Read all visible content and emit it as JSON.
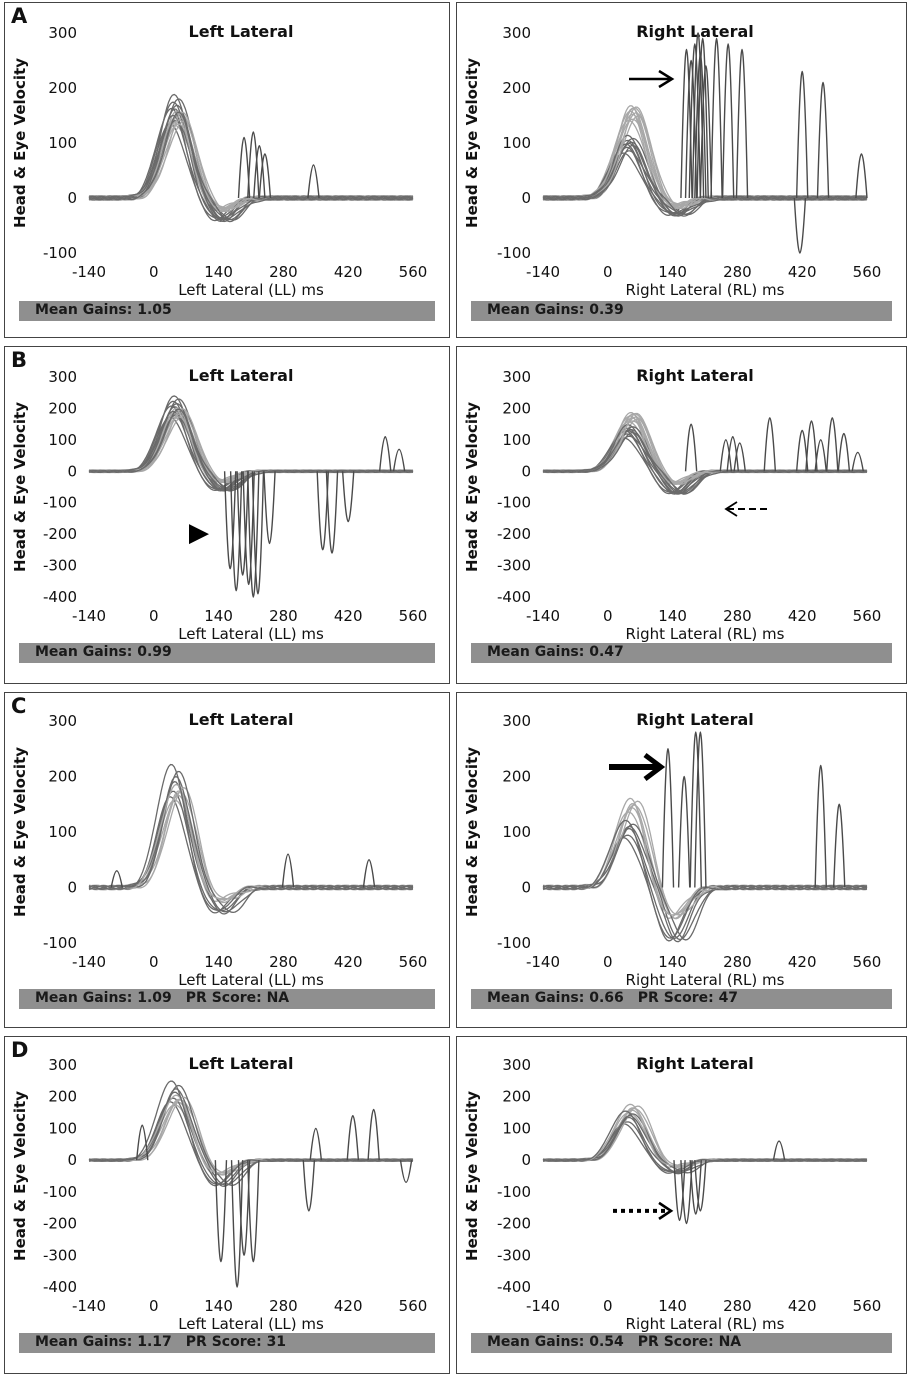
{
  "chart_data": [
    {
      "id": "A-left",
      "type": "line",
      "panel_letter": "A",
      "title": "Left Lateral",
      "xlabel": "Left Lateral (LL) ms",
      "ylabel": "Head & Eye Velocity",
      "xticks": [
        -140,
        0,
        140,
        280,
        420,
        560
      ],
      "yticks": [
        300,
        200,
        100,
        0,
        -100
      ],
      "xlim": [
        -140,
        560
      ],
      "ylim": [
        -100,
        300
      ],
      "mean_gains_label": "Mean Gains: 1.05",
      "pr_score_label": "",
      "head_peak": 160,
      "eye_peak": 165,
      "traces": 10,
      "dip": 40,
      "annotation": "none",
      "saccades": [
        {
          "t": 195,
          "v": 110
        },
        {
          "t": 215,
          "v": 120
        },
        {
          "t": 228,
          "v": 95
        },
        {
          "t": 240,
          "v": 80
        },
        {
          "t": 345,
          "v": 60
        }
      ]
    },
    {
      "id": "A-right",
      "type": "line",
      "panel_letter": "",
      "title": "Right Lateral",
      "xlabel": "Right Lateral (RL) ms",
      "ylabel": "Head & Eye Velocity",
      "xticks": [
        -140,
        0,
        140,
        280,
        420,
        560
      ],
      "yticks": [
        300,
        200,
        100,
        0,
        -100
      ],
      "xlim": [
        -140,
        560
      ],
      "ylim": [
        -100,
        300
      ],
      "mean_gains_label": "Mean Gains: 0.39",
      "pr_score_label": "",
      "head_peak": 170,
      "eye_peak": 100,
      "traces": 10,
      "dip": 30,
      "annotation": "arrow-solid",
      "saccades": [
        {
          "t": 170,
          "v": 270
        },
        {
          "t": 180,
          "v": 250
        },
        {
          "t": 188,
          "v": 280
        },
        {
          "t": 195,
          "v": 300
        },
        {
          "t": 200,
          "v": 260
        },
        {
          "t": 205,
          "v": 290
        },
        {
          "t": 212,
          "v": 240
        },
        {
          "t": 235,
          "v": 290
        },
        {
          "t": 260,
          "v": 280
        },
        {
          "t": 290,
          "v": 270
        },
        {
          "t": 420,
          "v": 230
        },
        {
          "t": 465,
          "v": 210
        },
        {
          "t": 548,
          "v": 80
        },
        {
          "t": 415,
          "v": -100
        }
      ]
    },
    {
      "id": "B-left",
      "type": "line",
      "panel_letter": "B",
      "title": "Left Lateral",
      "xlabel": "Left Lateral (LL) ms",
      "ylabel": "Head & Eye Velocity",
      "xticks": [
        -140,
        0,
        140,
        280,
        420,
        560
      ],
      "yticks": [
        300,
        200,
        100,
        0,
        -100,
        -200,
        -300,
        -400
      ],
      "xlim": [
        -140,
        560
      ],
      "ylim": [
        -400,
        300
      ],
      "mean_gains_label": "Mean Gains: 0.99",
      "pr_score_label": "",
      "head_peak": 205,
      "eye_peak": 210,
      "traces": 10,
      "dip": 60,
      "annotation": "triangle",
      "saccades": [
        {
          "t": 165,
          "v": -310
        },
        {
          "t": 178,
          "v": -380
        },
        {
          "t": 192,
          "v": -330
        },
        {
          "t": 205,
          "v": -360
        },
        {
          "t": 215,
          "v": -400
        },
        {
          "t": 225,
          "v": -390
        },
        {
          "t": 250,
          "v": -230
        },
        {
          "t": 365,
          "v": -250
        },
        {
          "t": 385,
          "v": -260
        },
        {
          "t": 420,
          "v": -160
        },
        {
          "t": 500,
          "v": 110
        },
        {
          "t": 530,
          "v": 70
        }
      ]
    },
    {
      "id": "B-right",
      "type": "line",
      "panel_letter": "",
      "title": "Right Lateral",
      "xlabel": "Right Lateral (RL) ms",
      "ylabel": "Head & Eye Velocity",
      "xticks": [
        -140,
        0,
        140,
        280,
        420,
        560
      ],
      "yticks": [
        300,
        200,
        100,
        0,
        -100,
        -200,
        -300,
        -400
      ],
      "xlim": [
        -140,
        560
      ],
      "ylim": [
        -400,
        300
      ],
      "mean_gains_label": "Mean Gains: 0.47",
      "pr_score_label": "",
      "head_peak": 190,
      "eye_peak": 130,
      "traces": 10,
      "dip": 70,
      "annotation": "arrow-dashed",
      "saccades": [
        {
          "t": 180,
          "v": 150
        },
        {
          "t": 255,
          "v": 100
        },
        {
          "t": 270,
          "v": 110
        },
        {
          "t": 285,
          "v": 90
        },
        {
          "t": 350,
          "v": 170
        },
        {
          "t": 420,
          "v": 130
        },
        {
          "t": 440,
          "v": 160
        },
        {
          "t": 460,
          "v": 100
        },
        {
          "t": 485,
          "v": 170
        },
        {
          "t": 510,
          "v": 120
        },
        {
          "t": 540,
          "v": 60
        }
      ]
    },
    {
      "id": "C-left",
      "type": "line",
      "panel_letter": "C",
      "title": "Left Lateral",
      "xlabel": "Left Lateral (LL) ms",
      "ylabel": "Head & Eye Velocity",
      "xticks": [
        -140,
        0,
        140,
        280,
        420,
        560
      ],
      "yticks": [
        300,
        200,
        100,
        0,
        -100
      ],
      "xlim": [
        -140,
        560
      ],
      "ylim": [
        -100,
        300
      ],
      "mean_gains_label": "Mean Gains: 1.09",
      "pr_score_label": "PR Score: NA",
      "head_peak": 190,
      "eye_peak": 200,
      "traces": 6,
      "dip": 45,
      "annotation": "none",
      "saccades": [
        {
          "t": 290,
          "v": 60
        },
        {
          "t": 465,
          "v": 50
        },
        {
          "t": -80,
          "v": 30
        }
      ]
    },
    {
      "id": "C-right",
      "type": "line",
      "panel_letter": "",
      "title": "Right Lateral",
      "xlabel": "Right Lateral (RL) ms",
      "ylabel": "Head & Eye Velocity",
      "xticks": [
        -140,
        0,
        140,
        280,
        420,
        560
      ],
      "yticks": [
        300,
        200,
        100,
        0,
        -100
      ],
      "xlim": [
        -140,
        560
      ],
      "ylim": [
        -100,
        300
      ],
      "mean_gains_label": "Mean Gains: 0.66",
      "pr_score_label": "PR Score: 47",
      "head_peak": 165,
      "eye_peak": 110,
      "traces": 6,
      "dip": 95,
      "annotation": "arrow-bold",
      "saccades": [
        {
          "t": 130,
          "v": 250
        },
        {
          "t": 165,
          "v": 200
        },
        {
          "t": 190,
          "v": 280
        },
        {
          "t": 200,
          "v": 280
        },
        {
          "t": 460,
          "v": 220
        },
        {
          "t": 500,
          "v": 150
        }
      ]
    },
    {
      "id": "D-left",
      "type": "line",
      "panel_letter": "D",
      "title": "Left Lateral",
      "xlabel": "Left Lateral (LL) ms",
      "ylabel": "Head & Eye Velocity",
      "xticks": [
        -140,
        0,
        140,
        280,
        420,
        560
      ],
      "yticks": [
        300,
        200,
        100,
        0,
        -100,
        -200,
        -300,
        -400
      ],
      "xlim": [
        -140,
        560
      ],
      "ylim": [
        -400,
        300
      ],
      "mean_gains_label": "Mean Gains: 1.17",
      "pr_score_label": "PR Score: 31",
      "head_peak": 210,
      "eye_peak": 225,
      "traces": 6,
      "dip": 80,
      "annotation": "none",
      "saccades": [
        {
          "t": -25,
          "v": 110
        },
        {
          "t": 145,
          "v": -320
        },
        {
          "t": 180,
          "v": -400
        },
        {
          "t": 195,
          "v": -300
        },
        {
          "t": 215,
          "v": -320
        },
        {
          "t": 335,
          "v": -160
        },
        {
          "t": 350,
          "v": 100
        },
        {
          "t": 430,
          "v": 140
        },
        {
          "t": 475,
          "v": 160
        },
        {
          "t": 545,
          "v": -70
        }
      ]
    },
    {
      "id": "D-right",
      "type": "line",
      "panel_letter": "",
      "title": "Right Lateral",
      "xlabel": "Right Lateral (RL) ms",
      "ylabel": "Head & Eye Velocity",
      "xticks": [
        -140,
        0,
        140,
        280,
        420,
        560
      ],
      "yticks": [
        300,
        200,
        100,
        0,
        -100,
        -200,
        -300,
        -400
      ],
      "xlim": [
        -140,
        560
      ],
      "ylim": [
        -400,
        300
      ],
      "mean_gains_label": "Mean Gains: 0.54",
      "pr_score_label": "PR Score: NA",
      "head_peak": 180,
      "eye_peak": 140,
      "traces": 6,
      "dip": 40,
      "annotation": "arrow-dotted",
      "saccades": [
        {
          "t": 155,
          "v": -190
        },
        {
          "t": 170,
          "v": -200
        },
        {
          "t": 190,
          "v": -170
        },
        {
          "t": 200,
          "v": -160
        },
        {
          "t": 370,
          "v": 60
        }
      ]
    }
  ]
}
